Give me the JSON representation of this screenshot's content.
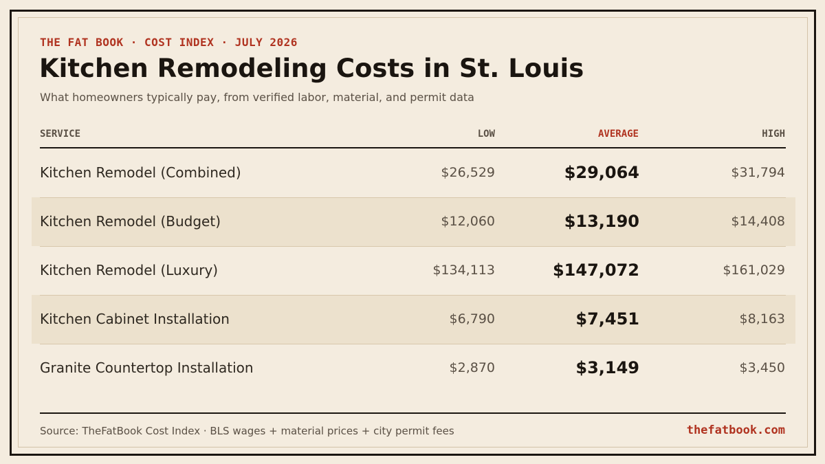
{
  "header": {
    "eyebrow": "THE FAT BOOK · COST INDEX · JULY 2026",
    "title": "Kitchen Remodeling Costs in St. Louis",
    "subtitle": "What homeowners typically pay, from verified labor, material, and permit data"
  },
  "table": {
    "columns": {
      "service": "SERVICE",
      "low": "LOW",
      "average": "AVERAGE",
      "high": "HIGH"
    },
    "rows": [
      {
        "service": "Kitchen Remodel (Combined)",
        "low": "$26,529",
        "average": "$29,064",
        "high": "$31,794"
      },
      {
        "service": "Kitchen Remodel (Budget)",
        "low": "$12,060",
        "average": "$13,190",
        "high": "$14,408"
      },
      {
        "service": "Kitchen Remodel (Luxury)",
        "low": "$134,113",
        "average": "$147,072",
        "high": "$161,029"
      },
      {
        "service": "Kitchen Cabinet Installation",
        "low": "$6,790",
        "average": "$7,451",
        "high": "$8,163"
      },
      {
        "service": "Granite Countertop Installation",
        "low": "$2,870",
        "average": "$3,149",
        "high": "$3,450"
      }
    ]
  },
  "footer": {
    "source": "Source: TheFatBook Cost Index · BLS wages + material prices + city permit fees",
    "site": "thefatbook.com"
  },
  "colors": {
    "background": "#f4ecdf",
    "accent": "#b03320",
    "ink": "#1a1510",
    "row_shade": "#ece1cd"
  }
}
